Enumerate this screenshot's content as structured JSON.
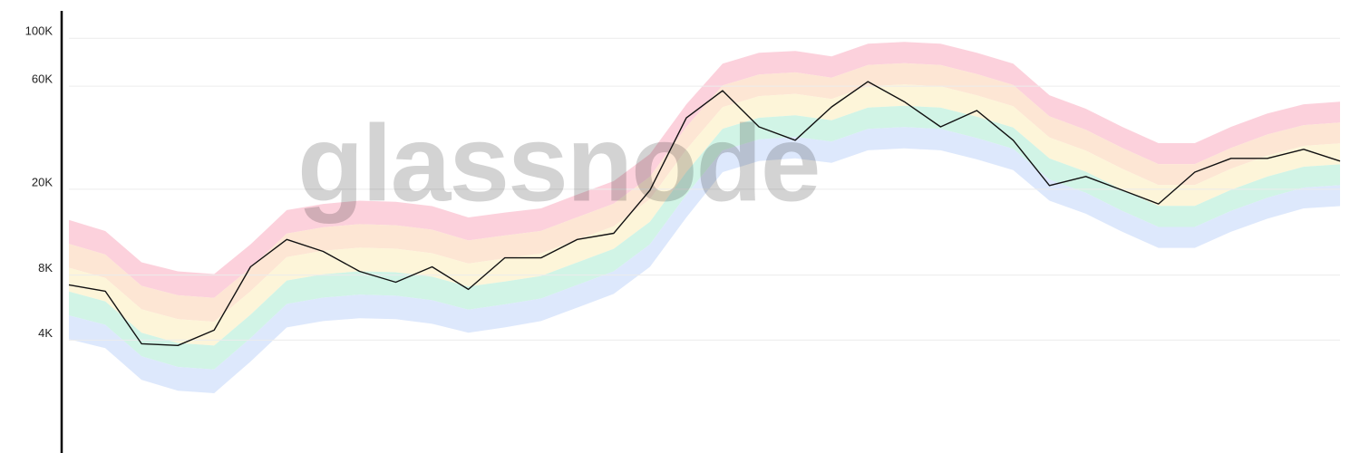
{
  "chart_data": {
    "type": "line",
    "watermark": "glassnode",
    "log_scale": true,
    "grid": true,
    "ylim": [
      1200,
      134000
    ],
    "yticks": [
      {
        "value": 100000,
        "label": "100K"
      },
      {
        "value": 60000,
        "label": "60K"
      },
      {
        "value": 20000,
        "label": "20K"
      },
      {
        "value": 8000,
        "label": "8K"
      },
      {
        "value": 4000,
        "label": "4K"
      }
    ],
    "series": [
      {
        "color": "#111111",
        "values": [
          7210,
          6740,
          3850,
          3780,
          4450,
          8740,
          11700,
          10300,
          8330,
          7420,
          8740,
          6870,
          9620,
          9620,
          11700,
          12500,
          19800,
          42800,
          57200,
          38900,
          33700,
          48100,
          63000,
          50900,
          38900,
          46300,
          33700,
          20800,
          22900,
          19800,
          17100,
          24000,
          27800,
          27800,
          30600,
          27000
        ]
      }
    ],
    "band_upper": [
      14400,
      12800,
      9170,
      8330,
      8090,
      11100,
      16000,
      17100,
      17700,
      17500,
      16700,
      14800,
      15600,
      16300,
      18900,
      21800,
      29100,
      49500,
      76300,
      85700,
      87400,
      82500,
      94400,
      96200,
      94400,
      85700,
      76300,
      54500,
      47200,
      38900,
      32700,
      32700,
      38900,
      44900,
      49500,
      50900
    ],
    "band_lower": [
      4040,
      3670,
      2620,
      2330,
      2270,
      3180,
      4580,
      4900,
      5050,
      5000,
      4760,
      4330,
      4580,
      4900,
      5660,
      6550,
      8740,
      14800,
      24000,
      27000,
      27800,
      26500,
      30300,
      30900,
      30300,
      27500,
      24500,
      17700,
      15400,
      12700,
      10700,
      10700,
      12700,
      14600,
      16300,
      16700
    ],
    "band_colors": [
      "#fcc9d6",
      "#fde2cc",
      "#fdf3d2",
      "#c9f2e2",
      "#d7e4fb"
    ]
  }
}
